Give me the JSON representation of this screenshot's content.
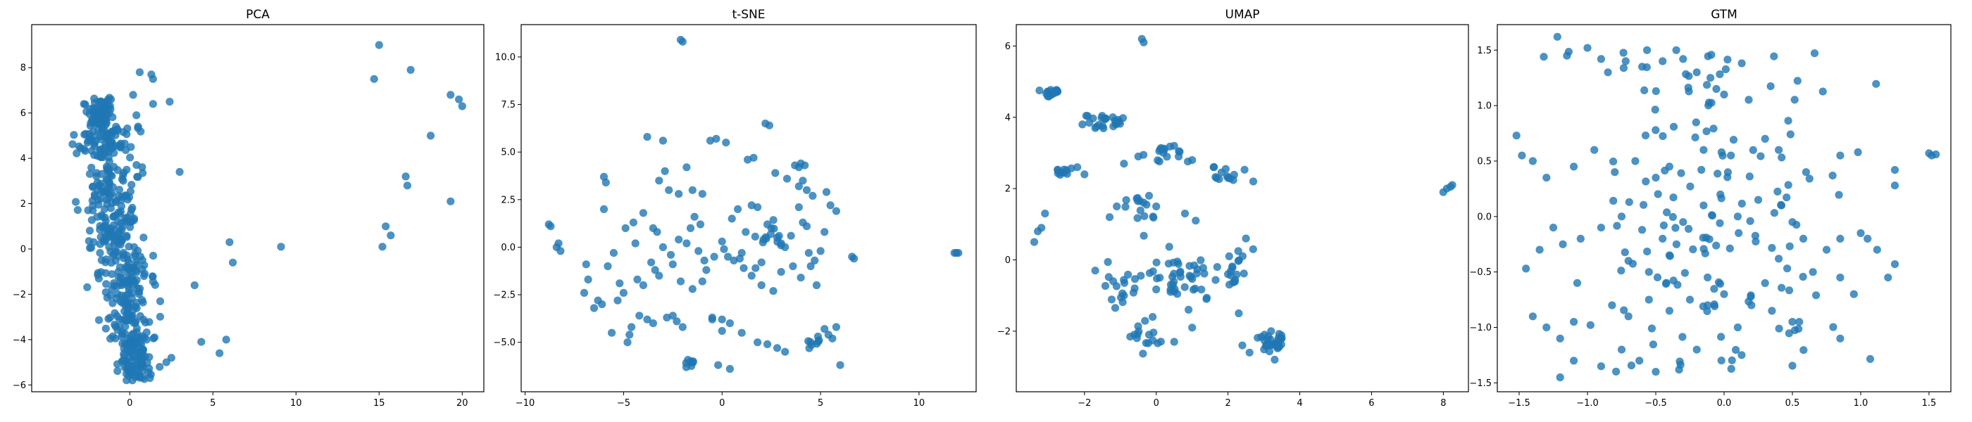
{
  "style": {
    "point_color": "#1f77b4",
    "point_opacity": 0.8
  },
  "chart_data": [
    {
      "type": "scatter",
      "title": "PCA",
      "xlabel": "",
      "ylabel": "",
      "xlim": [
        -5.9,
        21.3
      ],
      "ylim": [
        -6.3,
        9.9
      ],
      "xticks": [
        0,
        5,
        10,
        15,
        20
      ],
      "yticks": [
        -6,
        -4,
        -2,
        0,
        2,
        4,
        6,
        8
      ],
      "grid": false,
      "x": [
        15.0,
        16.9,
        14.7,
        19.3,
        19.8,
        20.0,
        18.1,
        16.6,
        16.7,
        19.3,
        15.4,
        15.7,
        15.2,
        0.6,
        1.3,
        1.4,
        0.2,
        0.4,
        2.4,
        0.5,
        1.4,
        3.0,
        6.0,
        6.2,
        9.1,
        5.8,
        5.4,
        4.3,
        2.5,
        2.2,
        1.8,
        3.9
      ],
      "y": [
        9.0,
        7.9,
        7.5,
        6.8,
        6.6,
        6.3,
        5.0,
        3.2,
        2.8,
        2.1,
        1.0,
        0.6,
        0.1,
        7.8,
        7.7,
        7.5,
        6.8,
        5.9,
        6.5,
        5.4,
        6.4,
        3.4,
        0.3,
        -0.6,
        0.1,
        -4.0,
        -4.6,
        -4.1,
        -4.8,
        -5.0,
        -5.2,
        -1.6
      ],
      "cluster": {
        "count": 560,
        "seed": 7,
        "ranges": [
          {
            "y": [
              -5.8,
              -4.0
            ],
            "x": [
              -1.2,
              1.6
            ]
          },
          {
            "y": [
              -4.0,
              -2.0
            ],
            "x": [
              -2.2,
              2.2
            ]
          },
          {
            "y": [
              -2.0,
              0.0
            ],
            "x": [
              -2.8,
              2.4
            ]
          },
          {
            "y": [
              0.0,
              2.0
            ],
            "x": [
              -3.5,
              1.6
            ]
          },
          {
            "y": [
              2.0,
              4.0
            ],
            "x": [
              -3.8,
              1.6
            ]
          },
          {
            "y": [
              4.0,
              5.5
            ],
            "x": [
              -3.9,
              0.9
            ]
          },
          {
            "y": [
              5.5,
              6.7
            ],
            "x": [
              -3.0,
              -0.6
            ]
          }
        ]
      }
    },
    {
      "type": "scatter",
      "title": "t-SNE",
      "xlabel": "",
      "ylabel": "",
      "xlim": [
        -10.2,
        12.9
      ],
      "ylim": [
        -7.6,
        11.7
      ],
      "xticks": [
        -10,
        -5,
        0,
        5,
        10
      ],
      "yticks": [
        -5.0,
        -2.5,
        0.0,
        2.5,
        5.0,
        7.5,
        10.0
      ],
      "grid": false,
      "x": [
        -2.1,
        -2.0,
        -8.8,
        -8.7,
        -8.3,
        -8.4,
        -8.2,
        11.8,
        11.9,
        12.0,
        -6.0,
        -5.9,
        -6.0,
        -5.8,
        -6.1,
        -5.2,
        -5.0,
        -4.3,
        -4.0,
        -3.5,
        -3.3,
        -3.4,
        -3.2,
        -3.0,
        -2.6,
        -2.5,
        -2.1,
        -1.8,
        -1.6,
        -1.2,
        -0.9,
        -0.5,
        0.1,
        0.0,
        0.0,
        0.3,
        0.5,
        0.8,
        1.0,
        1.2,
        1.5,
        1.8,
        2.1,
        2.3,
        2.5,
        2.8,
        3.0,
        3.2,
        3.5,
        3.9,
        4.1,
        4.3,
        4.4,
        4.5,
        4.7,
        5.0,
        5.2,
        5.4,
        5.6,
        5.8,
        6.0,
        6.6,
        6.7,
        -1.8,
        -1.5,
        -1.0,
        -0.6,
        -0.3,
        0.2,
        1.3,
        1.6,
        2.2,
        2.4,
        3.7,
        3.9,
        4.1,
        4.3,
        4.6,
        5.3,
        5.5,
        5.8,
        -4.6,
        -4.7,
        -4.8,
        -4.2,
        -3.8,
        -3.5,
        -2.8,
        -2.5,
        -2.3,
        -2.0,
        -0.5,
        0.0,
        0.4,
        1.0,
        1.8,
        2.3,
        2.8,
        3.2,
        -4.9,
        -4.5,
        -4.0,
        -3.8,
        -3.0,
        -2.2,
        -1.5,
        -1.0,
        -0.8,
        -0.4,
        0.6,
        1.1,
        1.5,
        2.0,
        2.6,
        3.0,
        3.6,
        4.0,
        4.8,
        5.2,
        -0.2,
        0.4,
        -3.2,
        -2.9,
        2.7,
        3.3,
        4.2,
        4.0,
        3.9,
        2.0,
        1.7,
        0.9,
        -1.1,
        -1.4,
        -2.7,
        -2.2,
        -3.6,
        -4.4,
        -5.5,
        -6.3,
        -6.5,
        -6.8,
        -7.0,
        -6.9,
        -5.3,
        -5.6
      ],
      "y": [
        10.9,
        10.8,
        1.2,
        1.1,
        0.2,
        0.0,
        -0.2,
        -0.3,
        -0.3,
        -0.3,
        3.7,
        3.4,
        2.0,
        -1.0,
        -3.0,
        -1.9,
        -2.4,
        -1.7,
        -2.0,
        1.0,
        0.8,
        -1.2,
        -1.5,
        0.0,
        -0.4,
        -0.9,
        -1.8,
        0.2,
        1.0,
        -0.2,
        -0.7,
        -3.8,
        -0.1,
        0.3,
        -4.4,
        -0.5,
        1.5,
        2.0,
        -0.3,
        0.8,
        2.2,
        2.1,
        0.4,
        1.2,
        1.0,
        0.5,
        0.2,
        0.0,
        0.6,
        2.1,
        1.3,
        1.1,
        -0.3,
        -1.0,
        -0.7,
        -0.2,
        -4.3,
        -4.6,
        -4.8,
        -4.2,
        -6.2,
        -0.5,
        -0.6,
        4.2,
        3.0,
        2.8,
        5.6,
        5.7,
        5.5,
        4.6,
        4.7,
        6.5,
        6.4,
        4.3,
        4.2,
        3.5,
        3.0,
        2.7,
        2.9,
        2.2,
        1.9,
        -4.2,
        -4.6,
        -5.0,
        -3.6,
        -3.8,
        -4.0,
        -3.7,
        -3.6,
        -3.9,
        -4.2,
        -3.7,
        -3.8,
        -4.0,
        -4.5,
        -5.0,
        -5.1,
        -5.3,
        -5.5,
        1.0,
        1.3,
        1.8,
        5.8,
        5.6,
        2.8,
        -2.2,
        -1.8,
        -1.2,
        -0.5,
        -0.7,
        -1.1,
        -1.5,
        -2.0,
        -2.3,
        -1.3,
        -1.0,
        -1.6,
        -2.0,
        0.8,
        -6.2,
        -6.4,
        3.5,
        4.0,
        3.9,
        3.6,
        4.3,
        4.4,
        3.2,
        -0.8,
        -1.1,
        -0.6,
        1.2,
        1.6,
        3.0,
        0.4,
        -0.8,
        0.2,
        -0.3,
        -2.8,
        -3.2,
        -1.7,
        -2.4,
        -0.9,
        -2.8,
        -4.5
      ],
      "groups": [
        {
          "x": -1.6,
          "y": -6.1,
          "n": 8,
          "sx": 0.55,
          "sy": 0.35
        },
        {
          "x": 4.6,
          "y": -5.0,
          "n": 8,
          "sx": 0.45,
          "sy": 0.35
        },
        {
          "x": 2.5,
          "y": 0.5,
          "n": 10,
          "sx": 0.8,
          "sy": 0.8
        }
      ]
    },
    {
      "type": "scatter",
      "title": "UMAP",
      "xlabel": "",
      "ylabel": "",
      "xlim": [
        -3.9,
        8.7
      ],
      "ylim": [
        -3.7,
        6.6
      ],
      "xticks": [
        -2,
        0,
        2,
        4,
        6,
        8
      ],
      "yticks": [
        -2,
        0,
        2,
        4,
        6
      ],
      "grid": false,
      "x": [
        -0.4,
        -0.35,
        8.0,
        8.1,
        8.2,
        8.25,
        -3.4,
        -3.3,
        -3.2,
        -3.1,
        -2.2,
        -2.0,
        -0.9,
        -0.5,
        0.2,
        0.5,
        1.0,
        1.6,
        2.0,
        -1.1,
        -1.3,
        -0.2,
        0.0,
        0.8,
        1.1,
        2.5,
        2.7,
        -1.7,
        -1.2,
        -0.9,
        -0.6,
        0.1,
        0.4,
        0.9,
        1.4,
        1.7,
        2.0,
        2.3,
        3.3,
        3.5,
        3.2,
        2.4,
        2.6,
        -0.2,
        -0.1,
        0.5,
        1.0
      ],
      "y": [
        6.2,
        6.1,
        1.9,
        2.0,
        2.05,
        2.1,
        0.5,
        0.8,
        0.9,
        1.3,
        2.6,
        2.4,
        2.7,
        2.9,
        3.0,
        3.2,
        2.8,
        2.6,
        2.3,
        1.5,
        1.2,
        1.8,
        1.5,
        1.3,
        1.1,
        0.6,
        0.3,
        -0.3,
        -0.6,
        -1.0,
        -0.8,
        -0.5,
        -0.9,
        -1.4,
        -1.1,
        -0.2,
        -0.4,
        -1.5,
        -2.8,
        -2.2,
        -2.0,
        -2.4,
        -2.6,
        -2.1,
        -1.6,
        -2.3,
        -1.9
      ],
      "groups": [
        {
          "x": -2.9,
          "y": 4.7,
          "n": 16,
          "sx": 0.25,
          "sy": 0.15
        },
        {
          "x": -1.4,
          "y": 3.9,
          "n": 24,
          "sx": 0.7,
          "sy": 0.25
        },
        {
          "x": -2.6,
          "y": 2.5,
          "n": 10,
          "sx": 0.3,
          "sy": 0.12
        },
        {
          "x": 0.4,
          "y": 3.0,
          "n": 14,
          "sx": 0.6,
          "sy": 0.3
        },
        {
          "x": 1.8,
          "y": 2.4,
          "n": 12,
          "sx": 0.5,
          "sy": 0.3
        },
        {
          "x": -0.5,
          "y": 1.4,
          "n": 14,
          "sx": 0.35,
          "sy": 0.7
        },
        {
          "x": 0.6,
          "y": -0.5,
          "n": 40,
          "sx": 1.0,
          "sy": 0.8
        },
        {
          "x": -1.0,
          "y": -0.8,
          "n": 14,
          "sx": 0.6,
          "sy": 0.6
        },
        {
          "x": 2.2,
          "y": -0.3,
          "n": 14,
          "sx": 0.35,
          "sy": 0.6
        },
        {
          "x": 3.2,
          "y": -2.3,
          "n": 30,
          "sx": 0.35,
          "sy": 0.3
        },
        {
          "x": -0.3,
          "y": -2.1,
          "n": 14,
          "sx": 0.6,
          "sy": 0.35
        }
      ]
    },
    {
      "type": "scatter",
      "title": "GTM",
      "xlabel": "",
      "ylabel": "",
      "xlim": [
        -1.66,
        1.66
      ],
      "ylim": [
        -1.58,
        1.73
      ],
      "xticks": [
        -1.5,
        -1.0,
        -0.5,
        0.0,
        0.5,
        1.0,
        1.5
      ],
      "yticks": [
        -1.5,
        -1.0,
        -0.5,
        0.0,
        0.5,
        1.0,
        1.5
      ],
      "grid": false,
      "x": [
        -1.22,
        -1.32,
        -1.15,
        -1.0,
        -0.9,
        -0.85,
        -0.72,
        -0.6,
        -0.45,
        -0.35,
        -0.3,
        -0.2,
        -0.1,
        0.0,
        -1.52,
        -1.48,
        -1.4,
        -1.3,
        -1.1,
        -0.95,
        -0.8,
        -0.65,
        -0.5,
        -0.4,
        -0.15,
        0.05,
        0.3,
        0.4,
        0.6,
        0.85,
        0.98,
        1.25,
        1.25,
        1.5,
        1.52,
        1.55,
        -1.45,
        -1.35,
        -1.25,
        -1.18,
        -1.05,
        -0.9,
        -0.75,
        -0.6,
        -0.45,
        -0.3,
        -0.15,
        0.1,
        0.25,
        0.42,
        0.5,
        0.58,
        0.75,
        0.85,
        1.0,
        1.05,
        1.12,
        1.2,
        1.25,
        -1.4,
        -1.3,
        -1.2,
        -1.1,
        -0.82,
        -0.7,
        -0.55,
        -0.4,
        -0.25,
        -0.12,
        0.0,
        0.2,
        0.35,
        0.55,
        0.85,
        0.95,
        -1.1,
        -1.2,
        -0.9,
        -0.75,
        -0.62,
        -0.5,
        -0.2,
        0.1,
        0.5,
        0.85,
        -0.7,
        -0.55,
        -0.4,
        0.3,
        0.65,
        0.4
      ],
      "y": [
        1.62,
        1.44,
        1.45,
        1.52,
        1.42,
        1.3,
        1.4,
        1.35,
        1.4,
        1.5,
        1.42,
        1.3,
        1.25,
        1.1,
        0.73,
        0.55,
        0.5,
        0.35,
        0.45,
        0.6,
        0.4,
        0.5,
        0.35,
        0.45,
        0.6,
        0.55,
        0.7,
        0.6,
        0.4,
        0.55,
        0.58,
        0.42,
        0.28,
        0.57,
        0.55,
        0.56,
        -0.47,
        -0.3,
        -0.1,
        -0.25,
        -0.2,
        -0.1,
        0.0,
        -0.12,
        -0.2,
        -0.05,
        0.1,
        0.0,
        0.15,
        0.1,
        -0.05,
        -0.2,
        -0.3,
        -0.2,
        -0.15,
        -0.2,
        -0.3,
        -0.55,
        -0.43,
        -0.9,
        -1.0,
        -1.1,
        -0.95,
        -0.8,
        -0.9,
        -0.75,
        -0.85,
        -0.75,
        -0.8,
        -0.7,
        -0.8,
        -0.85,
        -0.95,
        -0.55,
        -0.7,
        -1.3,
        -1.45,
        -1.35,
        -1.2,
        -1.3,
        -1.4,
        -1.2,
        -1.0,
        -0.95,
        -1.1,
        -0.4,
        -0.5,
        -0.35,
        -0.6,
        -0.5,
        -0.38
      ],
      "cluster": {
        "count": 150,
        "seed": 11,
        "ranges": [
          {
            "y": [
              -1.4,
              1.5
            ],
            "x": [
              -1.45,
              1.25
            ]
          }
        ]
      }
    }
  ]
}
